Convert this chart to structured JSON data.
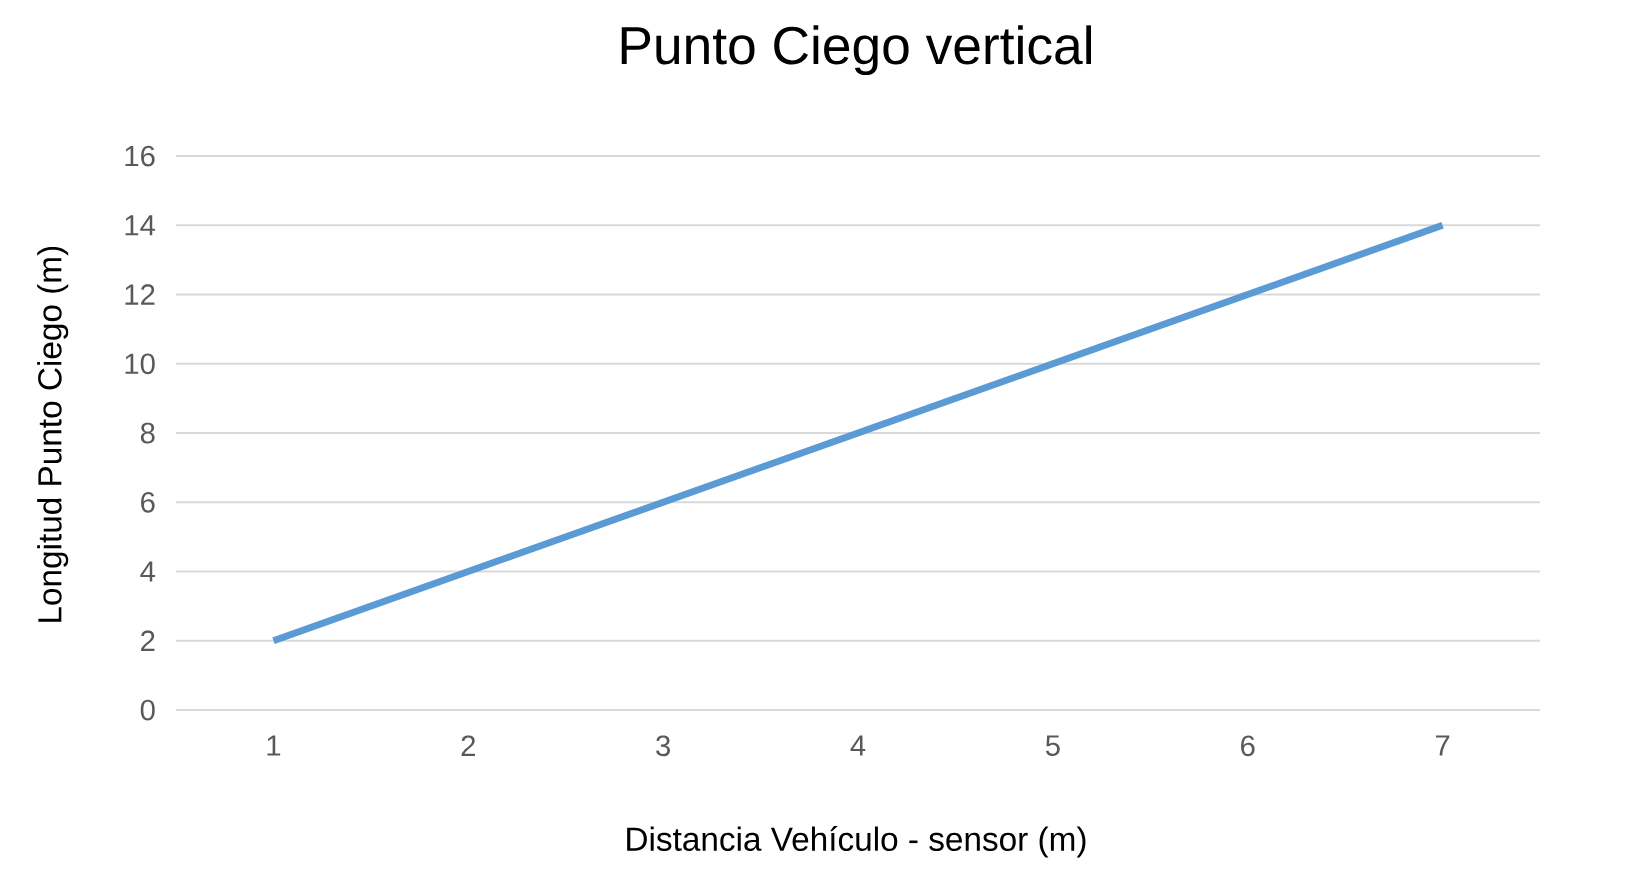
{
  "chart_data": {
    "type": "line",
    "title": "Punto Ciego vertical",
    "xlabel": "Distancia Vehículo - sensor (m)",
    "ylabel": "Longitud Punto Ciego (m)",
    "categories": [
      "1",
      "2",
      "3",
      "4",
      "5",
      "6",
      "7"
    ],
    "series": [
      {
        "color": "#5b9bd5",
        "values": [
          2,
          4,
          6,
          8,
          10,
          12,
          14
        ]
      }
    ],
    "ylim": [
      0,
      16
    ],
    "yticks": [
      0,
      2,
      4,
      6,
      8,
      10,
      12,
      14,
      16
    ],
    "grid": "y"
  }
}
